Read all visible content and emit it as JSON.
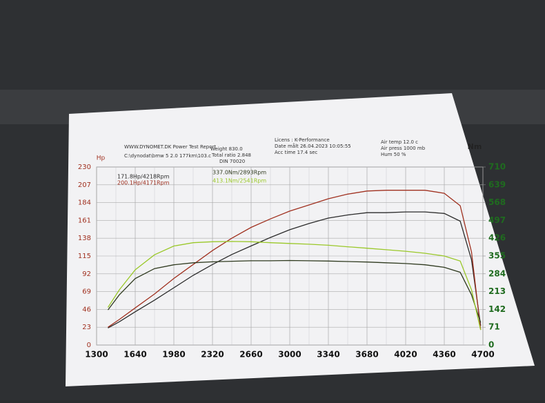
{
  "chart_data": {
    "type": "line",
    "header": {
      "site": "WWW.DYNOMET.DK Power Test Report",
      "weight": "Weight 830.0",
      "file": "C:\\dynodat\\bmw 5 2.0 177km\\103.c",
      "ratio": "Total ratio 2.848",
      "din": "DIN 70020",
      "licens": "Licens : K-Performance",
      "date": "Date målt 26.04.2023 10:05:55",
      "acc": "Acc time 17.4 sec",
      "air_temp": "Air temp 12.0 c",
      "air_press": "Air press 1000 mb",
      "hum": "Hum 50 %"
    },
    "ylabel": "Hp",
    "y2label": "Nm",
    "x": [
      1400,
      1500,
      1640,
      1810,
      1980,
      2150,
      2320,
      2490,
      2660,
      2830,
      3000,
      3170,
      3340,
      3510,
      3680,
      3850,
      4020,
      4190,
      4360,
      4500,
      4600,
      4680
    ],
    "xlim": [
      1300,
      4700
    ],
    "xticks": [
      1300,
      1640,
      1980,
      2320,
      2660,
      3000,
      3340,
      3680,
      4020,
      4360,
      4700
    ],
    "ylim": [
      0,
      230
    ],
    "yticks": [
      0,
      23,
      46,
      69,
      92,
      115,
      138,
      161,
      184,
      207,
      230
    ],
    "y2lim": [
      0,
      710
    ],
    "y2ticks": [
      0,
      71,
      142,
      213,
      284,
      355,
      426,
      497,
      568,
      639,
      710
    ],
    "grid": true,
    "series": [
      {
        "name": "171.8Hp/4218Rpm",
        "color": "#2b2b2b",
        "values": [
          22,
          30,
          43,
          58,
          74,
          90,
          104,
          117,
          128,
          139,
          149,
          157,
          164,
          168,
          171,
          171,
          172,
          172,
          170,
          160,
          110,
          25
        ]
      },
      {
        "name": "200.1Hp/4171Rpm",
        "color": "#a0301f",
        "values": [
          23,
          33,
          48,
          66,
          86,
          104,
          122,
          138,
          152,
          163,
          173,
          181,
          189,
          195,
          199,
          200,
          200,
          200,
          196,
          180,
          120,
          20
        ]
      },
      {
        "name": "337.0Nm/2893Rpm",
        "color": "#2f3a1f",
        "axis": "y2",
        "values": [
          140,
          200,
          265,
          305,
          320,
          328,
          332,
          334,
          336,
          336,
          337,
          336,
          335,
          333,
          331,
          328,
          325,
          320,
          310,
          290,
          200,
          90
        ]
      },
      {
        "name": "413.1Nm/2541Rpm",
        "color": "#9ac828",
        "axis": "y2",
        "values": [
          150,
          220,
          300,
          360,
          395,
          408,
          412,
          413,
          412,
          408,
          405,
          402,
          398,
          392,
          386,
          380,
          374,
          366,
          355,
          335,
          220,
          60
        ]
      }
    ]
  }
}
